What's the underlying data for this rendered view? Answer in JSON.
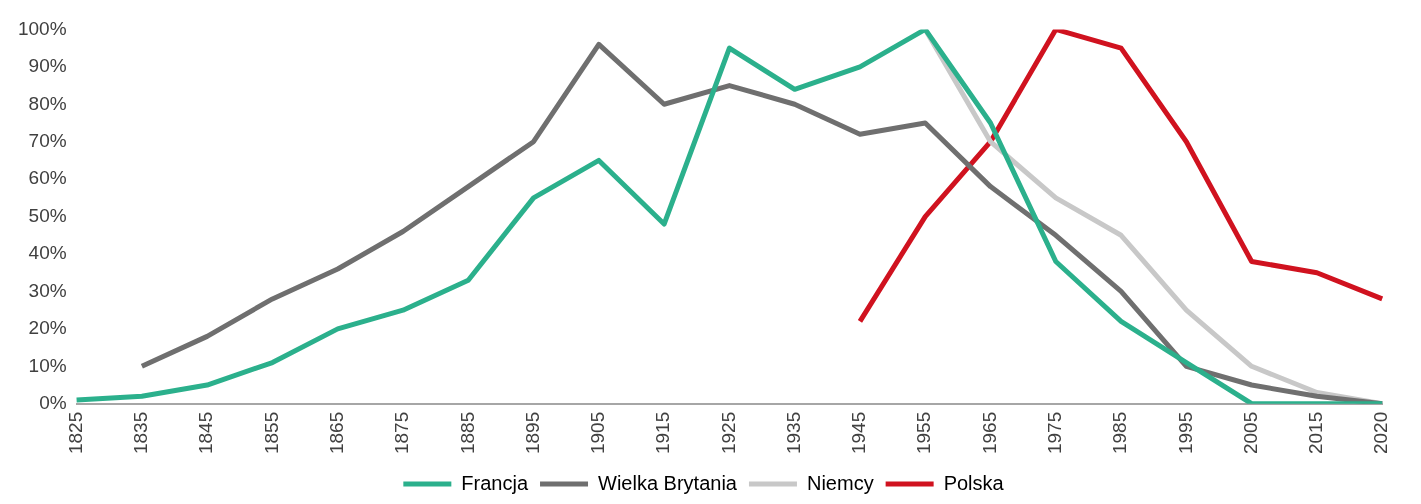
{
  "chart_data": {
    "type": "line",
    "categories": [
      "1825",
      "1835",
      "1845",
      "1855",
      "1865",
      "1875",
      "1885",
      "1895",
      "1905",
      "1915",
      "1925",
      "1935",
      "1945",
      "1955",
      "1965",
      "1975",
      "1985",
      "1995",
      "2005",
      "2015",
      "2020"
    ],
    "series": [
      {
        "name": "Francja",
        "color": "#2bb08c",
        "values": [
          1,
          2,
          5,
          11,
          20,
          25,
          33,
          55,
          65,
          48,
          95,
          84,
          90,
          100,
          75,
          38,
          22,
          11,
          0,
          0,
          0
        ]
      },
      {
        "name": "Wielka Brytania",
        "color": "#6f6f6f",
        "values": [
          null,
          10,
          18,
          28,
          36,
          46,
          58,
          70,
          96,
          80,
          85,
          80,
          72,
          75,
          58,
          45,
          30,
          10,
          5,
          2,
          0
        ]
      },
      {
        "name": "Niemcy",
        "color": "#c8c8c8",
        "values": [
          null,
          null,
          null,
          null,
          null,
          null,
          null,
          null,
          null,
          null,
          null,
          null,
          null,
          100,
          70,
          55,
          45,
          25,
          10,
          3,
          0
        ]
      },
      {
        "name": "Polska",
        "color": "#d0121f",
        "values": [
          null,
          null,
          null,
          null,
          null,
          null,
          null,
          null,
          null,
          null,
          null,
          null,
          22,
          50,
          70,
          100,
          95,
          70,
          38,
          35,
          28
        ]
      }
    ],
    "ylim": [
      0,
      100
    ],
    "yticks": [
      {
        "value": 0,
        "label": "0%"
      },
      {
        "value": 10,
        "label": "10%"
      },
      {
        "value": 20,
        "label": "20%"
      },
      {
        "value": 30,
        "label": "30%"
      },
      {
        "value": 40,
        "label": "40%"
      },
      {
        "value": 50,
        "label": "50%"
      },
      {
        "value": 60,
        "label": "60%"
      },
      {
        "value": 70,
        "label": "70%"
      },
      {
        "value": 80,
        "label": "80%"
      },
      {
        "value": 90,
        "label": "90%"
      },
      {
        "value": 100,
        "label": "100%"
      }
    ],
    "grid": false,
    "legend": "bottom",
    "marker": "none",
    "line_style": "solid"
  }
}
